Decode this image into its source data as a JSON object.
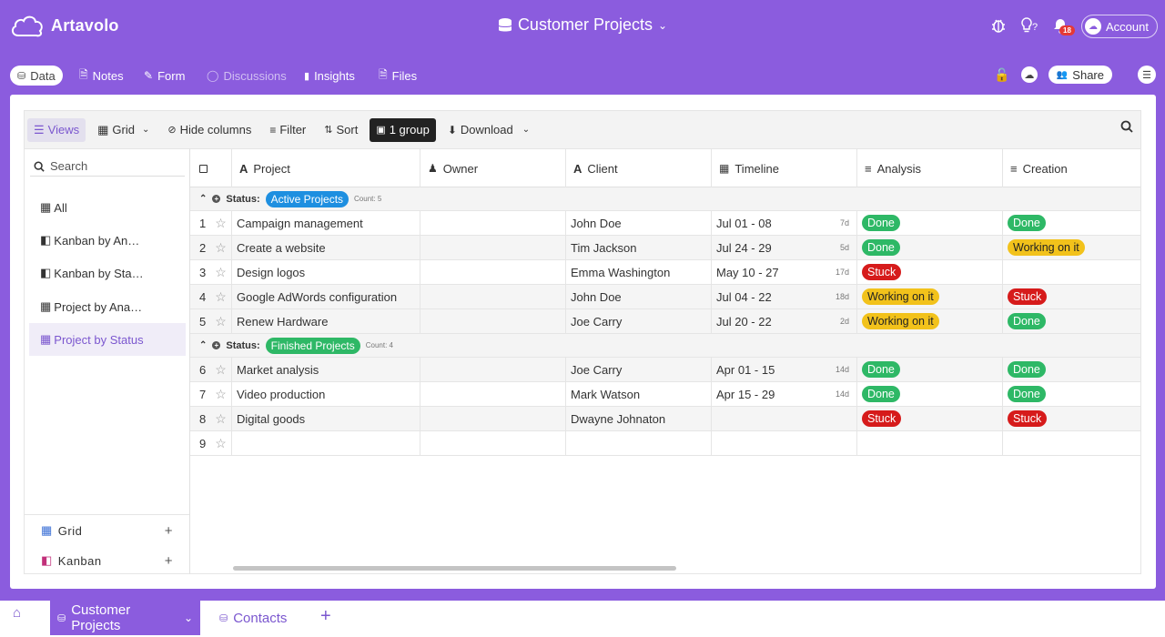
{
  "app": {
    "name": "Artavolo",
    "title": "Customer Projects",
    "notification_count": "18",
    "account_label": "Account"
  },
  "tabs": [
    {
      "label": "Data",
      "icon": "database-icon",
      "active": true
    },
    {
      "label": "Notes",
      "icon": "note-icon"
    },
    {
      "label": "Form",
      "icon": "pencil-icon"
    },
    {
      "label": "Discussions",
      "icon": "chat-icon",
      "muted": true
    },
    {
      "label": "Insights",
      "icon": "bar-chart-icon"
    },
    {
      "label": "Files",
      "icon": "file-icon"
    }
  ],
  "share_label": "Share",
  "toolbar": {
    "views": "Views",
    "grid": "Grid",
    "hide_columns": "Hide columns",
    "filter": "Filter",
    "sort": "Sort",
    "group": "1 group",
    "download": "Download"
  },
  "sidebar": {
    "search_placeholder": "Search",
    "views": [
      {
        "label": "All",
        "icon": "grid-icon"
      },
      {
        "label": "Kanban by An…",
        "icon": "kanban-icon"
      },
      {
        "label": "Kanban by Sta…",
        "icon": "kanban-icon"
      },
      {
        "label": "Project by Ana…",
        "icon": "grid-icon"
      },
      {
        "label": "Project by Status",
        "icon": "grid-icon",
        "active": true
      }
    ],
    "create": [
      {
        "label": "Grid",
        "icon": "grid-icon"
      },
      {
        "label": "Kanban",
        "icon": "kanban-icon"
      }
    ]
  },
  "columns": [
    {
      "label": "Project",
      "icon": "text-icon"
    },
    {
      "label": "Owner",
      "icon": "user-icon"
    },
    {
      "label": "Client",
      "icon": "text-icon"
    },
    {
      "label": "Timeline",
      "icon": "calendar-icon"
    },
    {
      "label": "Analysis",
      "icon": "list-icon"
    },
    {
      "label": "Creation",
      "icon": "list-icon"
    }
  ],
  "groups": [
    {
      "prefix": "Status:",
      "label": "Active Projects",
      "count": "Count: 5",
      "color": "#1e8fe0",
      "rows": [
        {
          "num": "1",
          "project": "Campaign management",
          "owner": "",
          "client": "John Doe",
          "timeline": "Jul 01 - 08",
          "days": "7d",
          "analysis": "Done",
          "creation": "Done"
        },
        {
          "num": "2",
          "project": "Create a website",
          "owner": "",
          "client": "Tim Jackson",
          "timeline": "Jul 24 - 29",
          "days": "5d",
          "analysis": "Done",
          "creation": "Working on it"
        },
        {
          "num": "3",
          "project": "Design logos",
          "owner": "",
          "client": "Emma Washington",
          "timeline": "May 10 - 27",
          "days": "17d",
          "analysis": "Stuck",
          "creation": ""
        },
        {
          "num": "4",
          "project": "Google AdWords configuration",
          "owner": "",
          "client": "John Doe",
          "timeline": "Jul 04 - 22",
          "days": "18d",
          "analysis": "Working on it",
          "creation": "Stuck"
        },
        {
          "num": "5",
          "project": "Renew Hardware",
          "owner": "",
          "client": "Joe Carry",
          "timeline": "Jul 20 - 22",
          "days": "2d",
          "analysis": "Working on it",
          "creation": "Done"
        }
      ]
    },
    {
      "prefix": "Status:",
      "label": "Finished Projects",
      "count": "Count: 4",
      "color": "#2eb866",
      "rows": [
        {
          "num": "6",
          "project": "Market analysis",
          "owner": "",
          "client": "Joe Carry",
          "timeline": "Apr 01 - 15",
          "days": "14d",
          "analysis": "Done",
          "creation": "Done"
        },
        {
          "num": "7",
          "project": "Video production",
          "owner": "",
          "client": "Mark Watson",
          "timeline": "Apr 15 - 29",
          "days": "14d",
          "analysis": "Done",
          "creation": "Done"
        },
        {
          "num": "8",
          "project": "Digital goods",
          "owner": "",
          "client": "Dwayne Johnaton",
          "timeline": "",
          "days": "",
          "analysis": "Stuck",
          "creation": "Stuck"
        },
        {
          "num": "9",
          "project": "",
          "owner": "",
          "client": "",
          "timeline": "",
          "days": "",
          "analysis": "",
          "creation": ""
        }
      ]
    }
  ],
  "bottom_tabs": [
    {
      "label": "Customer Projects",
      "active": true
    },
    {
      "label": "Contacts"
    }
  ],
  "colors": {
    "brand": "#8b5cde",
    "done": "#2eb866",
    "stuck": "#d61b1b",
    "working": "#f2c21b"
  }
}
